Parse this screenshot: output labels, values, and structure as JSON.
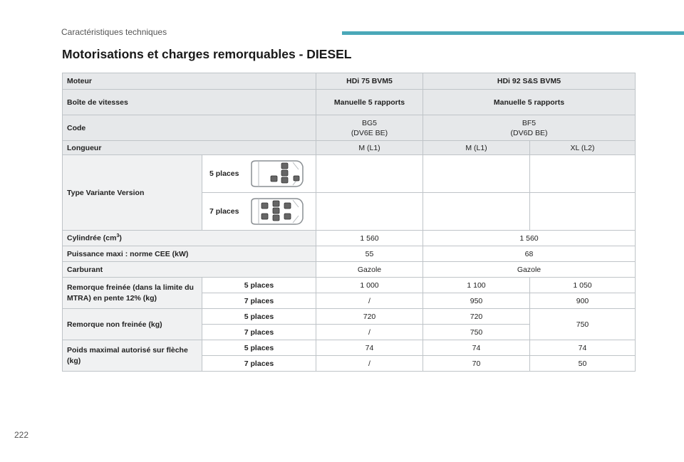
{
  "header": {
    "section": "Caractéristiques techniques",
    "accent_color": "#4aa8b8"
  },
  "title": "Motorisations et charges remorquables - DIESEL",
  "table": {
    "moteur": {
      "label": "Moteur",
      "col1": "HDi 75 BVM5",
      "col2": "HDi 92 S&S BVM5"
    },
    "boite": {
      "label": "Boîte de vitesses",
      "col1": "Manuelle 5 rapports",
      "col2": "Manuelle 5 rapports"
    },
    "code": {
      "label": "Code",
      "col1_a": "BG5",
      "col1_b": "(DV6E BE)",
      "col2_a": "BF5",
      "col2_b": "(DV6D BE)"
    },
    "longueur": {
      "label": "Longueur",
      "v1": "M (L1)",
      "v2": "M (L1)",
      "v3": "XL (L2)"
    },
    "type": {
      "label": "Type Variante Version",
      "five": "5 places",
      "seven": "7 places"
    },
    "cylindree": {
      "label": "Cylindrée (cm",
      "sup": "3",
      "close": ")",
      "col1": "1 560",
      "col2": "1 560"
    },
    "puissance": {
      "label": "Puissance maxi : norme CEE (kW)",
      "col1": "55",
      "col2": "68"
    },
    "carburant": {
      "label": "Carburant",
      "col1": "Gazole",
      "col2": "Gazole"
    },
    "remorque_freinee": {
      "label": "Remorque freinée (dans la limite du MTRA) en pente 12% (kg)",
      "five": "5 places",
      "seven": "7 places",
      "five_vals": [
        "1 000",
        "1 100",
        "1 050"
      ],
      "seven_vals": [
        "/",
        "950",
        "900"
      ]
    },
    "remorque_non_freinee": {
      "label": "Remorque non freinée (kg)",
      "five": "5 places",
      "seven": "7 places",
      "five_vals": [
        "720",
        "720"
      ],
      "seven_vals": [
        "/",
        "750"
      ],
      "merged": "750"
    },
    "poids": {
      "label": "Poids maximal autorisé sur flèche (kg)",
      "five": "5 places",
      "seven": "7 places",
      "five_vals": [
        "74",
        "74",
        "74"
      ],
      "seven_vals": [
        "/",
        "70",
        "50"
      ]
    }
  },
  "page_number": "222"
}
